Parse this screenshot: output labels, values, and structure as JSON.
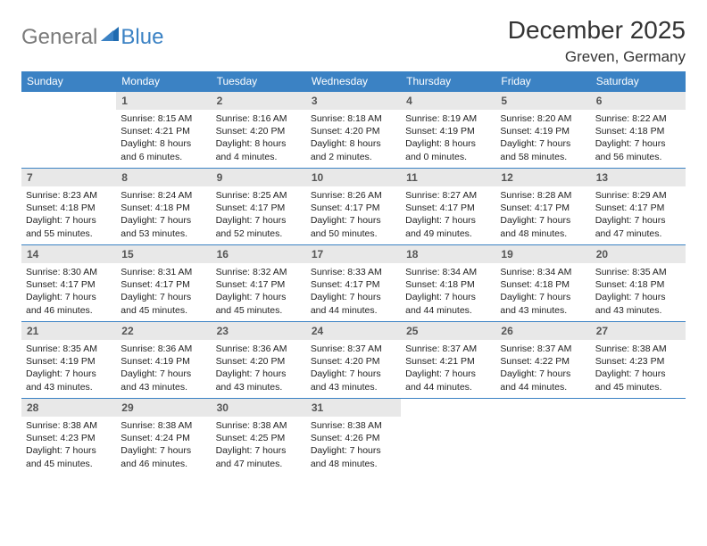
{
  "brand": {
    "general": "General",
    "blue": "Blue"
  },
  "colors": {
    "header_bg": "#3b82c4",
    "daynum_bg": "#e8e8e8",
    "border": "#3b82c4",
    "text": "#222222"
  },
  "title": "December 2025",
  "location": "Greven, Germany",
  "weekdays": [
    "Sunday",
    "Monday",
    "Tuesday",
    "Wednesday",
    "Thursday",
    "Friday",
    "Saturday"
  ],
  "cells": [
    {
      "n": "",
      "l1": "",
      "l2": "",
      "l3": "",
      "l4": "",
      "empty": true
    },
    {
      "n": "1",
      "l1": "Sunrise: 8:15 AM",
      "l2": "Sunset: 4:21 PM",
      "l3": "Daylight: 8 hours",
      "l4": "and 6 minutes."
    },
    {
      "n": "2",
      "l1": "Sunrise: 8:16 AM",
      "l2": "Sunset: 4:20 PM",
      "l3": "Daylight: 8 hours",
      "l4": "and 4 minutes."
    },
    {
      "n": "3",
      "l1": "Sunrise: 8:18 AM",
      "l2": "Sunset: 4:20 PM",
      "l3": "Daylight: 8 hours",
      "l4": "and 2 minutes."
    },
    {
      "n": "4",
      "l1": "Sunrise: 8:19 AM",
      "l2": "Sunset: 4:19 PM",
      "l3": "Daylight: 8 hours",
      "l4": "and 0 minutes."
    },
    {
      "n": "5",
      "l1": "Sunrise: 8:20 AM",
      "l2": "Sunset: 4:19 PM",
      "l3": "Daylight: 7 hours",
      "l4": "and 58 minutes."
    },
    {
      "n": "6",
      "l1": "Sunrise: 8:22 AM",
      "l2": "Sunset: 4:18 PM",
      "l3": "Daylight: 7 hours",
      "l4": "and 56 minutes."
    },
    {
      "n": "7",
      "l1": "Sunrise: 8:23 AM",
      "l2": "Sunset: 4:18 PM",
      "l3": "Daylight: 7 hours",
      "l4": "and 55 minutes."
    },
    {
      "n": "8",
      "l1": "Sunrise: 8:24 AM",
      "l2": "Sunset: 4:18 PM",
      "l3": "Daylight: 7 hours",
      "l4": "and 53 minutes."
    },
    {
      "n": "9",
      "l1": "Sunrise: 8:25 AM",
      "l2": "Sunset: 4:17 PM",
      "l3": "Daylight: 7 hours",
      "l4": "and 52 minutes."
    },
    {
      "n": "10",
      "l1": "Sunrise: 8:26 AM",
      "l2": "Sunset: 4:17 PM",
      "l3": "Daylight: 7 hours",
      "l4": "and 50 minutes."
    },
    {
      "n": "11",
      "l1": "Sunrise: 8:27 AM",
      "l2": "Sunset: 4:17 PM",
      "l3": "Daylight: 7 hours",
      "l4": "and 49 minutes."
    },
    {
      "n": "12",
      "l1": "Sunrise: 8:28 AM",
      "l2": "Sunset: 4:17 PM",
      "l3": "Daylight: 7 hours",
      "l4": "and 48 minutes."
    },
    {
      "n": "13",
      "l1": "Sunrise: 8:29 AM",
      "l2": "Sunset: 4:17 PM",
      "l3": "Daylight: 7 hours",
      "l4": "and 47 minutes."
    },
    {
      "n": "14",
      "l1": "Sunrise: 8:30 AM",
      "l2": "Sunset: 4:17 PM",
      "l3": "Daylight: 7 hours",
      "l4": "and 46 minutes."
    },
    {
      "n": "15",
      "l1": "Sunrise: 8:31 AM",
      "l2": "Sunset: 4:17 PM",
      "l3": "Daylight: 7 hours",
      "l4": "and 45 minutes."
    },
    {
      "n": "16",
      "l1": "Sunrise: 8:32 AM",
      "l2": "Sunset: 4:17 PM",
      "l3": "Daylight: 7 hours",
      "l4": "and 45 minutes."
    },
    {
      "n": "17",
      "l1": "Sunrise: 8:33 AM",
      "l2": "Sunset: 4:17 PM",
      "l3": "Daylight: 7 hours",
      "l4": "and 44 minutes."
    },
    {
      "n": "18",
      "l1": "Sunrise: 8:34 AM",
      "l2": "Sunset: 4:18 PM",
      "l3": "Daylight: 7 hours",
      "l4": "and 44 minutes."
    },
    {
      "n": "19",
      "l1": "Sunrise: 8:34 AM",
      "l2": "Sunset: 4:18 PM",
      "l3": "Daylight: 7 hours",
      "l4": "and 43 minutes."
    },
    {
      "n": "20",
      "l1": "Sunrise: 8:35 AM",
      "l2": "Sunset: 4:18 PM",
      "l3": "Daylight: 7 hours",
      "l4": "and 43 minutes."
    },
    {
      "n": "21",
      "l1": "Sunrise: 8:35 AM",
      "l2": "Sunset: 4:19 PM",
      "l3": "Daylight: 7 hours",
      "l4": "and 43 minutes."
    },
    {
      "n": "22",
      "l1": "Sunrise: 8:36 AM",
      "l2": "Sunset: 4:19 PM",
      "l3": "Daylight: 7 hours",
      "l4": "and 43 minutes."
    },
    {
      "n": "23",
      "l1": "Sunrise: 8:36 AM",
      "l2": "Sunset: 4:20 PM",
      "l3": "Daylight: 7 hours",
      "l4": "and 43 minutes."
    },
    {
      "n": "24",
      "l1": "Sunrise: 8:37 AM",
      "l2": "Sunset: 4:20 PM",
      "l3": "Daylight: 7 hours",
      "l4": "and 43 minutes."
    },
    {
      "n": "25",
      "l1": "Sunrise: 8:37 AM",
      "l2": "Sunset: 4:21 PM",
      "l3": "Daylight: 7 hours",
      "l4": "and 44 minutes."
    },
    {
      "n": "26",
      "l1": "Sunrise: 8:37 AM",
      "l2": "Sunset: 4:22 PM",
      "l3": "Daylight: 7 hours",
      "l4": "and 44 minutes."
    },
    {
      "n": "27",
      "l1": "Sunrise: 8:38 AM",
      "l2": "Sunset: 4:23 PM",
      "l3": "Daylight: 7 hours",
      "l4": "and 45 minutes."
    },
    {
      "n": "28",
      "l1": "Sunrise: 8:38 AM",
      "l2": "Sunset: 4:23 PM",
      "l3": "Daylight: 7 hours",
      "l4": "and 45 minutes."
    },
    {
      "n": "29",
      "l1": "Sunrise: 8:38 AM",
      "l2": "Sunset: 4:24 PM",
      "l3": "Daylight: 7 hours",
      "l4": "and 46 minutes."
    },
    {
      "n": "30",
      "l1": "Sunrise: 8:38 AM",
      "l2": "Sunset: 4:25 PM",
      "l3": "Daylight: 7 hours",
      "l4": "and 47 minutes."
    },
    {
      "n": "31",
      "l1": "Sunrise: 8:38 AM",
      "l2": "Sunset: 4:26 PM",
      "l3": "Daylight: 7 hours",
      "l4": "and 48 minutes."
    },
    {
      "n": "",
      "l1": "",
      "l2": "",
      "l3": "",
      "l4": "",
      "empty": true
    },
    {
      "n": "",
      "l1": "",
      "l2": "",
      "l3": "",
      "l4": "",
      "empty": true
    },
    {
      "n": "",
      "l1": "",
      "l2": "",
      "l3": "",
      "l4": "",
      "empty": true
    }
  ]
}
